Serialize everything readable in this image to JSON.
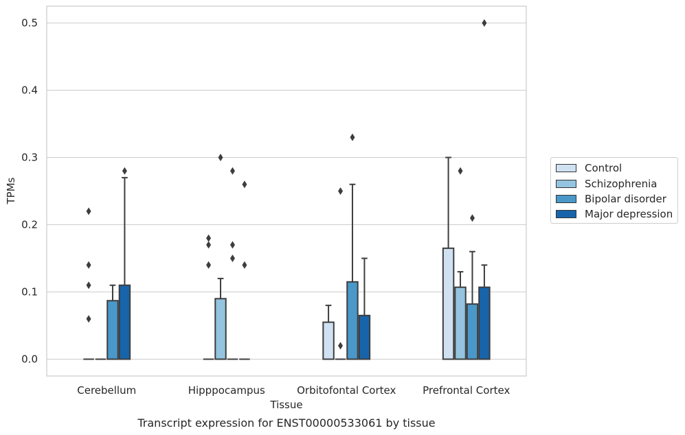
{
  "chart_data": {
    "type": "box",
    "xlabel": "Tissue",
    "ylabel": "TPMs",
    "caption": "Transcript expression for ENST00000533061 by tissue",
    "categories": [
      "Cerebellum",
      "Hipppocampus",
      "Orbitofontal Cortex",
      "Prefrontal Cortex"
    ],
    "ylim": [
      -0.025,
      0.525
    ],
    "yticks": [
      0.0,
      0.1,
      0.2,
      0.3,
      0.4,
      0.5
    ],
    "ytick_labels": [
      "0.0",
      "0.1",
      "0.2",
      "0.3",
      "0.4",
      "0.5"
    ],
    "grid": "horizontal",
    "legend_position": "right",
    "series": [
      {
        "name": "Control",
        "color": "#d0e1f2",
        "boxes": [
          {
            "q1": 0.0,
            "median": 0.0,
            "q3": 0.0,
            "whisker_low": 0.0,
            "whisker_high": 0.0,
            "outliers": [
              0.14,
              0.22,
              0.11,
              0.06
            ]
          },
          {
            "q1": 0.0,
            "median": 0.0,
            "q3": 0.0,
            "whisker_low": 0.0,
            "whisker_high": 0.0,
            "outliers": [
              0.18,
              0.17,
              0.14
            ]
          },
          {
            "q1": 0.0,
            "median": 0.0,
            "q3": 0.055,
            "whisker_low": 0.0,
            "whisker_high": 0.08,
            "outliers": []
          },
          {
            "q1": 0.0,
            "median": 0.0,
            "q3": 0.165,
            "whisker_low": 0.0,
            "whisker_high": 0.3,
            "outliers": []
          }
        ]
      },
      {
        "name": "Schizophrenia",
        "color": "#94c4df",
        "boxes": [
          {
            "q1": 0.0,
            "median": 0.0,
            "q3": 0.0,
            "whisker_low": 0.0,
            "whisker_high": 0.0,
            "outliers": []
          },
          {
            "q1": 0.0,
            "median": 0.0,
            "q3": 0.09,
            "whisker_low": 0.0,
            "whisker_high": 0.12,
            "outliers": [
              0.3
            ]
          },
          {
            "q1": 0.0,
            "median": 0.0,
            "q3": 0.0,
            "whisker_low": 0.0,
            "whisker_high": 0.0,
            "outliers": [
              0.25,
              0.02
            ]
          },
          {
            "q1": 0.0,
            "median": 0.0,
            "q3": 0.107,
            "whisker_low": 0.0,
            "whisker_high": 0.13,
            "outliers": [
              0.28
            ]
          }
        ]
      },
      {
        "name": "Bipolar disorder",
        "color": "#4a98c9",
        "boxes": [
          {
            "q1": 0.0,
            "median": 0.0,
            "q3": 0.087,
            "whisker_low": 0.0,
            "whisker_high": 0.11,
            "outliers": []
          },
          {
            "q1": 0.0,
            "median": 0.0,
            "q3": 0.0,
            "whisker_low": 0.0,
            "whisker_high": 0.0,
            "outliers": [
              0.28,
              0.17,
              0.15
            ]
          },
          {
            "q1": 0.0,
            "median": 0.0,
            "q3": 0.115,
            "whisker_low": 0.0,
            "whisker_high": 0.26,
            "outliers": [
              0.33
            ]
          },
          {
            "q1": 0.0,
            "median": 0.0,
            "q3": 0.082,
            "whisker_low": 0.0,
            "whisker_high": 0.16,
            "outliers": [
              0.21
            ]
          }
        ]
      },
      {
        "name": "Major depression",
        "color": "#1764ab",
        "boxes": [
          {
            "q1": 0.0,
            "median": 0.0,
            "q3": 0.11,
            "whisker_low": 0.0,
            "whisker_high": 0.27,
            "outliers": [
              0.28
            ]
          },
          {
            "q1": 0.0,
            "median": 0.0,
            "q3": 0.0,
            "whisker_low": 0.0,
            "whisker_high": 0.0,
            "outliers": [
              0.26,
              0.14
            ]
          },
          {
            "q1": 0.0,
            "median": 0.0,
            "q3": 0.065,
            "whisker_low": 0.0,
            "whisker_high": 0.15,
            "outliers": []
          },
          {
            "q1": 0.0,
            "median": 0.0,
            "q3": 0.107,
            "whisker_low": 0.0,
            "whisker_high": 0.14,
            "outliers": [
              0.5
            ]
          }
        ]
      }
    ]
  },
  "colors": {
    "grid": "#cccccc",
    "spine": "#cccccc",
    "edge": "#3d3d3d",
    "text": "#262626"
  }
}
